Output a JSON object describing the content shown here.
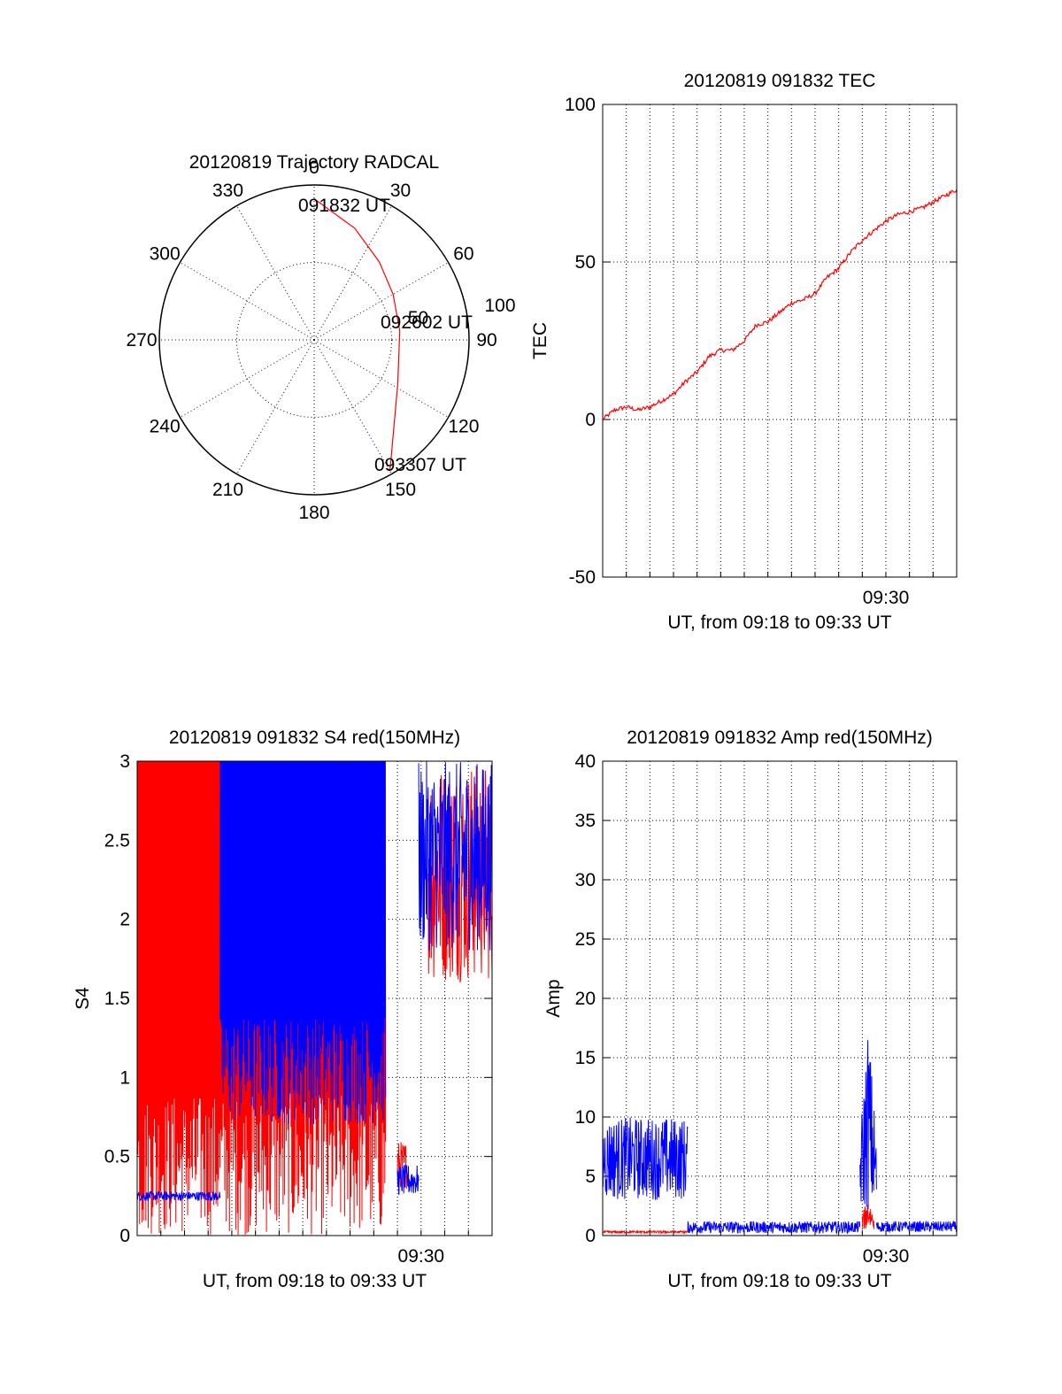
{
  "colors": {
    "red_series": "#ff0000",
    "blue_series": "#0000ff",
    "axis": "#000000",
    "grid": "#000000"
  },
  "chart_data": [
    {
      "id": "trajectory",
      "type": "polar",
      "title": "20120819 Trajectory RADCAL",
      "azimuth_labels": [
        "0",
        "30",
        "60",
        "90",
        "120",
        "150",
        "180",
        "210",
        "240",
        "270",
        "300",
        "330"
      ],
      "radial_labels": [
        "50",
        "100"
      ],
      "grid": "dotted",
      "annotations": [
        "091832 UT",
        "092602 UT",
        "093307 UT"
      ],
      "track": [
        {
          "time": "091832 UT",
          "azimuth": 0,
          "elevation": 82
        },
        {
          "time": "",
          "azimuth": 20,
          "elevation": 69
        },
        {
          "time": "",
          "azimuth": 40,
          "elevation": 59
        },
        {
          "time": "",
          "azimuth": 60,
          "elevation": 53
        },
        {
          "time": "092602 UT",
          "azimuth": 84,
          "elevation": 50
        },
        {
          "time": "",
          "azimuth": 100,
          "elevation": 50
        },
        {
          "time": "",
          "azimuth": 118,
          "elevation": 55
        },
        {
          "time": "093307 UT",
          "azimuth": 150,
          "elevation": 88
        }
      ]
    },
    {
      "id": "tec",
      "type": "line",
      "title": "20120819 091832 TEC",
      "ylabel": "TEC",
      "xlabel": "UT, from 09:18 to 09:33 UT",
      "xtick_label": "09:30",
      "ylim": [
        -50,
        100
      ],
      "yticks": [
        "100",
        "50",
        "0",
        "-50"
      ],
      "grid": "dotted",
      "series": [
        {
          "color": "red",
          "x_min": [
            0,
            0.5,
            1,
            1.5,
            2,
            2.5,
            3,
            3.5,
            4,
            4.5,
            5,
            5.5,
            6,
            6.5,
            7,
            7.5,
            8,
            8.5,
            9,
            9.5,
            10,
            10.5,
            11,
            11.5,
            12,
            12.5,
            13,
            13.5,
            14,
            14.5,
            15
          ],
          "values": [
            0,
            3,
            4,
            3,
            4,
            6,
            8,
            12,
            15,
            20,
            22,
            22,
            25,
            30,
            31,
            34,
            37,
            38,
            40,
            45,
            48,
            53,
            57,
            60,
            63,
            65,
            66,
            67,
            69,
            71,
            73
          ]
        }
      ]
    },
    {
      "id": "s4",
      "type": "line",
      "title": "20120819 091832 S4 red(150MHz)",
      "ylabel": "S4",
      "xlabel": "UT, from 09:18 to 09:33 UT",
      "xtick_label": "09:30",
      "ylim": [
        0,
        3
      ],
      "yticks": [
        "3",
        "2.5",
        "2",
        "1.5",
        "1",
        "0.5",
        "0"
      ],
      "grid": "dotted",
      "series": [
        {
          "color": "red",
          "segments": [
            {
              "x_start": 0.0,
              "x_end": 4.7,
              "range": [
                0,
                3
              ],
              "style": "saturated spikes"
            },
            {
              "x_start": 4.7,
              "x_end": 10.5,
              "range": [
                0,
                3
              ],
              "style": "saturated spikes"
            },
            {
              "x_start": 11.0,
              "x_end": 11.4,
              "range": [
                0.3,
                0.6
              ],
              "style": "noisy"
            },
            {
              "x_start": 12.3,
              "x_end": 15,
              "range": [
                1.6,
                3
              ],
              "style": "noisy"
            }
          ]
        },
        {
          "color": "blue",
          "segments": [
            {
              "x_start": 0.0,
              "x_end": 3.5,
              "range": [
                0.22,
                0.28
              ],
              "style": "flat noisy"
            },
            {
              "x_start": 3.5,
              "x_end": 10.5,
              "range": [
                0.7,
                3
              ],
              "style": "saturated spikes"
            },
            {
              "x_start": 11.0,
              "x_end": 11.9,
              "range": [
                0.25,
                0.45
              ],
              "style": "noisy"
            },
            {
              "x_start": 11.9,
              "x_end": 15,
              "range": [
                1.8,
                3
              ],
              "style": "noisy"
            }
          ]
        }
      ]
    },
    {
      "id": "amp",
      "type": "line",
      "title": "20120819 091832 Amp red(150MHz)",
      "ylabel": "Amp",
      "xlabel": "UT, from 09:18 to 09:33 UT",
      "xtick_label": "09:30",
      "ylim": [
        0,
        40
      ],
      "yticks": [
        "40",
        "35",
        "30",
        "25",
        "20",
        "15",
        "10",
        "5",
        "0"
      ],
      "grid": "dotted",
      "series": [
        {
          "color": "blue",
          "segments": [
            {
              "x_start": 0.0,
              "x_end": 3.6,
              "range": [
                3,
                10
              ],
              "style": "noisy band"
            },
            {
              "x_start": 3.6,
              "x_end": 10.9,
              "range": [
                0.2,
                1.2
              ],
              "style": "noisy"
            },
            {
              "x_start": 10.9,
              "x_end": 11.6,
              "range": [
                2,
                18
              ],
              "style": "burst"
            },
            {
              "x_start": 11.6,
              "x_end": 15,
              "range": [
                0.3,
                1.2
              ],
              "style": "noisy"
            }
          ]
        },
        {
          "color": "red",
          "segments": [
            {
              "x_start": 0.0,
              "x_end": 3.6,
              "range": [
                0.2,
                0.4
              ],
              "style": "flat"
            },
            {
              "x_start": 11.0,
              "x_end": 11.5,
              "range": [
                0.5,
                3.5
              ],
              "style": "burst"
            }
          ]
        }
      ]
    }
  ]
}
